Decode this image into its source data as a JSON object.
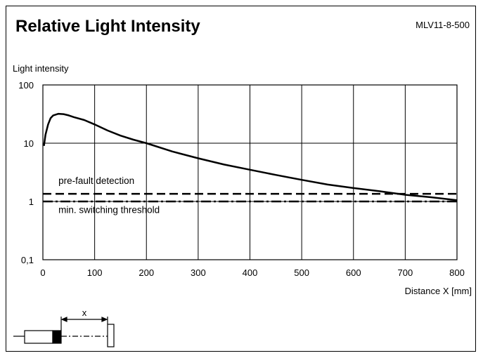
{
  "header": {
    "title": "Relative Light Intensity",
    "model": "MLV11-8-500"
  },
  "chart_data": {
    "type": "line",
    "title": "Relative Light Intensity",
    "ylabel": "Light intensity",
    "xlabel": "Distance X [mm]",
    "xlim": [
      0,
      800
    ],
    "ylim": [
      0.1,
      100
    ],
    "yscale": "log",
    "grid": true,
    "x_ticks": [
      0,
      100,
      200,
      300,
      400,
      500,
      600,
      700,
      800
    ],
    "y_ticks": [
      0.1,
      1,
      10,
      100
    ],
    "y_tick_labels": [
      "0,1",
      "1",
      "10",
      "100"
    ],
    "series": [
      {
        "style": "solid",
        "x": [
          2,
          5,
          10,
          15,
          20,
          30,
          40,
          50,
          60,
          80,
          100,
          125,
          150,
          175,
          200,
          250,
          300,
          350,
          400,
          450,
          500,
          550,
          600,
          650,
          700,
          750,
          800
        ],
        "y": [
          9,
          14,
          21,
          27,
          30,
          32,
          31.5,
          30,
          28,
          25,
          21,
          16.5,
          13.5,
          11.5,
          10,
          7.2,
          5.5,
          4.3,
          3.5,
          2.85,
          2.35,
          1.95,
          1.7,
          1.5,
          1.3,
          1.18,
          1.05
        ]
      },
      {
        "style": "dashed",
        "x": [
          0,
          800
        ],
        "y": [
          1.35,
          1.35
        ]
      },
      {
        "style": "dash-dot",
        "x": [
          0,
          800
        ],
        "y": [
          1.0,
          1.0
        ]
      }
    ],
    "annotations": [
      {
        "text": "pre-fault detection",
        "x": 30,
        "y": 2.0
      },
      {
        "text": "min. switching threshold",
        "x": 30,
        "y": 0.63
      }
    ]
  },
  "diagram": {
    "dimension_label": "x"
  }
}
